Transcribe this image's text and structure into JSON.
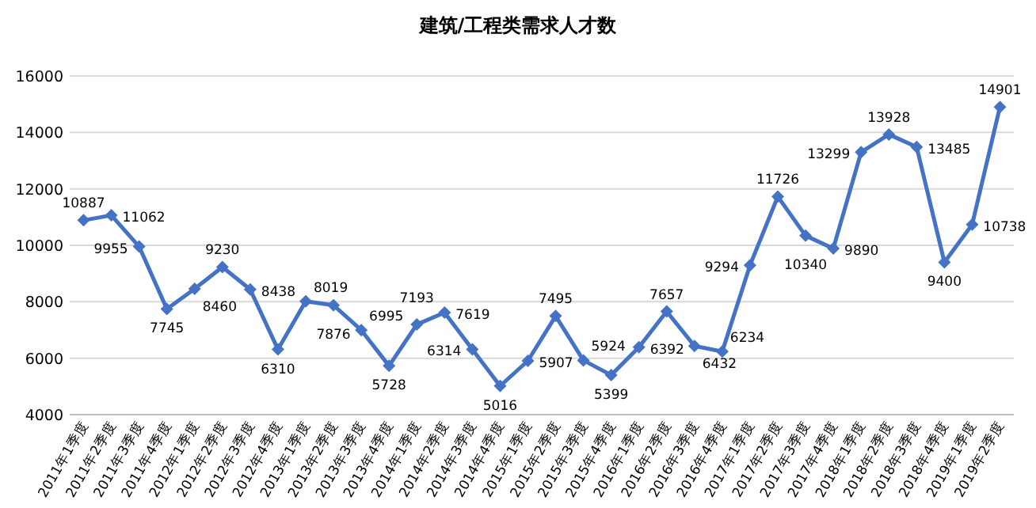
{
  "chart_data": {
    "type": "line",
    "title": "建筑/工程类需求人才数",
    "categories": [
      "2011年1季度",
      "2011年2季度",
      "2011年3季度",
      "2011年4季度",
      "2012年1季度",
      "2012年2季度",
      "2012年3季度",
      "2012年4季度",
      "2013年1季度",
      "2013年2季度",
      "2013年3季度",
      "2013年4季度",
      "2014年1季度",
      "2014年2季度",
      "2014年3季度",
      "2014年4季度",
      "2015年1季度",
      "2015年2季度",
      "2015年3季度",
      "2015年4季度",
      "2016年1季度",
      "2016年2季度",
      "2016年3季度",
      "2016年4季度",
      "2017年1季度",
      "2017年2季度",
      "2017年3季度",
      "2017年4季度",
      "2018年1季度",
      "2018年2季度",
      "2018年3季度",
      "2018年4季度",
      "2019年1季度",
      "2019年2季度"
    ],
    "series": [
      {
        "color": "#4472c4",
        "values": [
          10887,
          11062,
          9955,
          7745,
          8460,
          9230,
          8438,
          6310,
          8019,
          7876,
          6995,
          5728,
          7193,
          7619,
          6314,
          5016,
          5907,
          7495,
          5924,
          5399,
          6392,
          7657,
          6432,
          6234,
          9294,
          11726,
          10340,
          9890,
          13299,
          13928,
          13485,
          9400,
          10738,
          14901
        ]
      }
    ],
    "ylim": [
      4000,
      16000
    ],
    "yticks": [
      4000,
      6000,
      8000,
      10000,
      12000,
      14000,
      16000
    ],
    "grid": "y",
    "marker": "diamond",
    "line_style": "solid",
    "data_labels": true
  }
}
